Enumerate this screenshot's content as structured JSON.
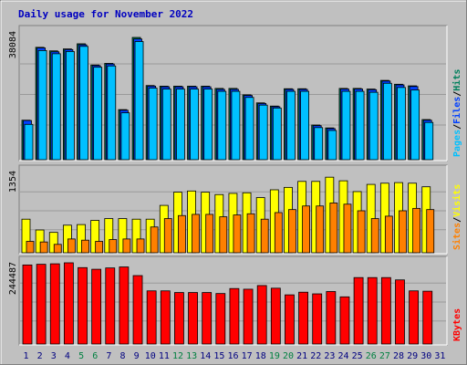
{
  "title": "Daily usage for November 2022",
  "colors": {
    "frame_bg": "#c0c0c0",
    "panel_bg": "#c0c0c0",
    "title": "#0000c0",
    "hits": "#00805c",
    "files": "#0040ff",
    "pages": "#00c0ff",
    "visits": "#ffff00",
    "sites": "#ff8000",
    "kbytes": "#ff0000",
    "tick_normal": "#000080",
    "tick_weekend": "#008040"
  },
  "chart_data": [
    {
      "type": "bar",
      "name": "hits-files-pages",
      "categories": [
        "1",
        "2",
        "3",
        "4",
        "5",
        "6",
        "7",
        "8",
        "9",
        "10",
        "11",
        "12",
        "13",
        "14",
        "15",
        "16",
        "17",
        "18",
        "19",
        "20",
        "21",
        "22",
        "23",
        "24",
        "25",
        "26",
        "27",
        "28",
        "29",
        "30",
        "31"
      ],
      "weekend_days": [
        "5",
        "6",
        "12",
        "13",
        "19",
        "20",
        "26",
        "27"
      ],
      "y_tick_label": "38084",
      "ylim": [
        0,
        38084
      ],
      "legend": [
        {
          "label": "Pages",
          "color": "#00c0ff"
        },
        {
          "label": "Files",
          "color": "#0040ff"
        },
        {
          "label": "Hits",
          "color": "#00805c"
        }
      ],
      "series": [
        {
          "name": "Hits",
          "values": [
            12300,
            35000,
            33900,
            34500,
            36100,
            29500,
            30000,
            15600,
            38084,
            23100,
            22900,
            22900,
            22900,
            22900,
            22200,
            22200,
            20200,
            17700,
            16700,
            22100,
            22100,
            10800,
            9900,
            22200,
            22200,
            22000,
            24700,
            23500,
            23000,
            12500,
            0
          ]
        },
        {
          "name": "Files",
          "values": [
            12200,
            34800,
            33600,
            34300,
            35800,
            29300,
            29800,
            15400,
            37600,
            22900,
            22700,
            22700,
            22700,
            22700,
            21900,
            21900,
            20000,
            17500,
            16500,
            21900,
            21900,
            10600,
            9700,
            22000,
            22000,
            21800,
            24500,
            23300,
            22800,
            12300,
            0
          ]
        },
        {
          "name": "Pages",
          "values": [
            11000,
            34000,
            33000,
            33700,
            35300,
            28800,
            29200,
            14600,
            36800,
            22300,
            22000,
            22000,
            22000,
            22000,
            21300,
            21300,
            19400,
            17000,
            16100,
            21300,
            21300,
            10000,
            9100,
            21300,
            21300,
            21000,
            23800,
            22500,
            21700,
            11600,
            0
          ]
        }
      ]
    },
    {
      "type": "bar",
      "name": "visits-sites",
      "categories": [
        "1",
        "2",
        "3",
        "4",
        "5",
        "6",
        "7",
        "8",
        "9",
        "10",
        "11",
        "12",
        "13",
        "14",
        "15",
        "16",
        "17",
        "18",
        "19",
        "20",
        "21",
        "22",
        "23",
        "24",
        "25",
        "26",
        "27",
        "28",
        "29",
        "30",
        "31"
      ],
      "y_tick_label": "1354",
      "ylim": [
        0,
        1354
      ],
      "legend": [
        {
          "label": "Sites",
          "color": "#ff8000"
        },
        {
          "label": "Visits",
          "color": "#ffff00"
        }
      ],
      "series": [
        {
          "name": "Visits",
          "values": [
            560,
            380,
            340,
            460,
            470,
            540,
            570,
            570,
            560,
            560,
            790,
            1010,
            1030,
            1010,
            970,
            990,
            1000,
            920,
            1050,
            1090,
            1190,
            1190,
            1260,
            1200,
            1020,
            1140,
            1160,
            1170,
            1160,
            1100,
            0
          ]
        },
        {
          "name": "Sites",
          "values": [
            190,
            180,
            140,
            230,
            210,
            190,
            220,
            230,
            230,
            430,
            570,
            620,
            640,
            640,
            600,
            630,
            650,
            560,
            670,
            720,
            780,
            780,
            830,
            810,
            700,
            570,
            610,
            700,
            740,
            720,
            0
          ]
        }
      ]
    },
    {
      "type": "bar",
      "name": "kbytes",
      "categories": [
        "1",
        "2",
        "3",
        "4",
        "5",
        "6",
        "7",
        "8",
        "9",
        "10",
        "11",
        "12",
        "13",
        "14",
        "15",
        "16",
        "17",
        "18",
        "19",
        "20",
        "21",
        "22",
        "23",
        "24",
        "25",
        "26",
        "27",
        "28",
        "29",
        "30",
        "31"
      ],
      "y_tick_label": "244487",
      "ylim": [
        0,
        244487
      ],
      "legend": [
        {
          "label": "KBytes",
          "color": "#ff0000"
        }
      ],
      "series": [
        {
          "name": "KBytes",
          "values": [
            238000,
            240000,
            241500,
            244487,
            230000,
            225000,
            229000,
            232000,
            206000,
            160000,
            160000,
            155000,
            155000,
            155000,
            152000,
            167000,
            165000,
            176000,
            168000,
            148000,
            156000,
            151000,
            158000,
            142000,
            200000,
            200000,
            200000,
            193000,
            160000,
            159000,
            0
          ]
        }
      ]
    }
  ]
}
